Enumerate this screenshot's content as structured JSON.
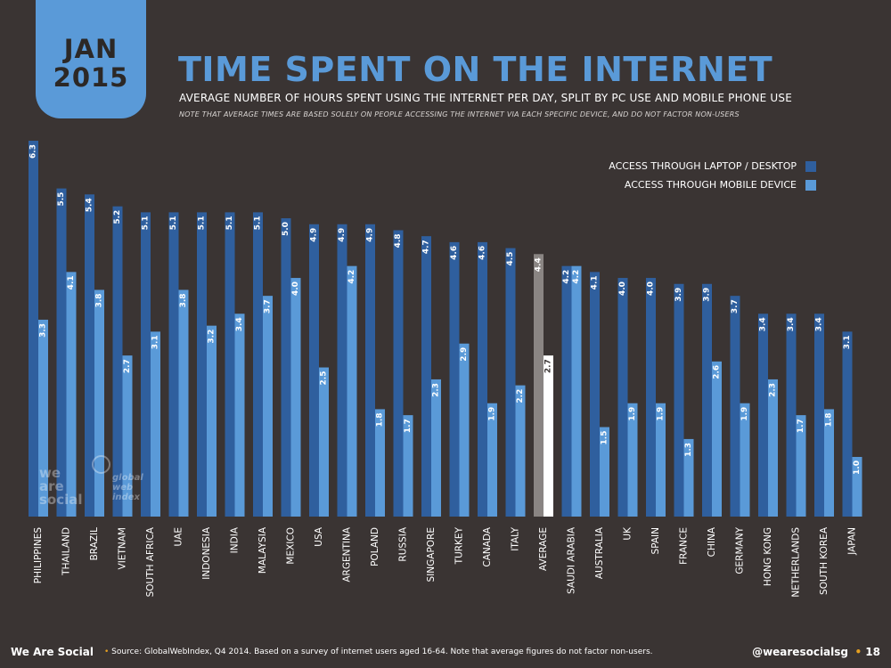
{
  "date_tab": {
    "month": "JAN",
    "year": "2015"
  },
  "header": {
    "title": "TIME SPENT ON THE INTERNET",
    "subtitle": "AVERAGE NUMBER OF HOURS SPENT USING THE INTERNET PER DAY, SPLIT BY PC USE AND MOBILE PHONE USE",
    "note": "NOTE THAT AVERAGE TIMES ARE BASED SOLELY ON PEOPLE ACCESSING THE INTERNET VIA EACH SPECIFIC DEVICE, AND DO NOT FACTOR NON-USERS"
  },
  "legend": {
    "laptop": "ACCESS THROUGH LAPTOP / DESKTOP",
    "mobile": "ACCESS THROUGH MOBILE DEVICE"
  },
  "colors": {
    "background": "#3a3433",
    "laptop": "#2f5f9e",
    "mobile": "#5a9ad8",
    "average_laptop": "#8a8583",
    "average_mobile": "#ffffff",
    "title": "#5a9ad8",
    "accent": "#e6a020"
  },
  "watermark": {
    "was": [
      "we",
      "are",
      "social"
    ],
    "gwi": [
      "global",
      "web",
      "index"
    ]
  },
  "footer": {
    "brand": "We Are Social",
    "source": "Source: GlobalWebIndex, Q4 2014. Based on a survey of internet users aged 16-64. Note that average figures do not factor non-users.",
    "handle": "@wearesocialsg",
    "page": "18"
  },
  "chart_data": {
    "type": "bar",
    "title": "TIME SPENT ON THE INTERNET",
    "legend_position": "top-right",
    "grid": false,
    "ylim": [
      0,
      6.3
    ],
    "categories": [
      "PHILIPPINES",
      "THAILAND",
      "BRAZIL",
      "VIETNAM",
      "SOUTH AFRICA",
      "UAE",
      "INDONESIA",
      "INDIA",
      "MALAYSIA",
      "MEXICO",
      "USA",
      "ARGENTINA",
      "POLAND",
      "RUSSIA",
      "SINGAPORE",
      "TURKEY",
      "CANADA",
      "ITALY",
      "AVERAGE",
      "SAUDI ARABIA",
      "AUSTRALIA",
      "UK",
      "SPAIN",
      "FRANCE",
      "CHINA",
      "GERMANY",
      "HONG KONG",
      "NETHERLANDS",
      "SOUTH KOREA",
      "JAPAN"
    ],
    "series": [
      {
        "name": "ACCESS THROUGH LAPTOP / DESKTOP",
        "values": [
          6.3,
          5.5,
          5.4,
          5.2,
          5.1,
          5.1,
          5.1,
          5.1,
          5.1,
          5.0,
          4.9,
          4.9,
          4.9,
          4.8,
          4.7,
          4.6,
          4.6,
          4.5,
          4.4,
          4.2,
          4.1,
          4.0,
          4.0,
          3.9,
          3.9,
          3.7,
          3.4,
          3.4,
          3.4,
          3.1
        ]
      },
      {
        "name": "ACCESS THROUGH MOBILE DEVICE",
        "values": [
          3.3,
          4.1,
          3.8,
          2.7,
          3.1,
          3.8,
          3.2,
          3.4,
          3.7,
          4.0,
          2.5,
          4.2,
          1.8,
          1.7,
          2.3,
          2.9,
          1.9,
          2.2,
          2.7,
          4.2,
          1.5,
          1.9,
          1.9,
          1.3,
          2.6,
          1.9,
          2.3,
          1.7,
          1.8,
          1.0
        ]
      }
    ],
    "highlight_category": "AVERAGE"
  }
}
